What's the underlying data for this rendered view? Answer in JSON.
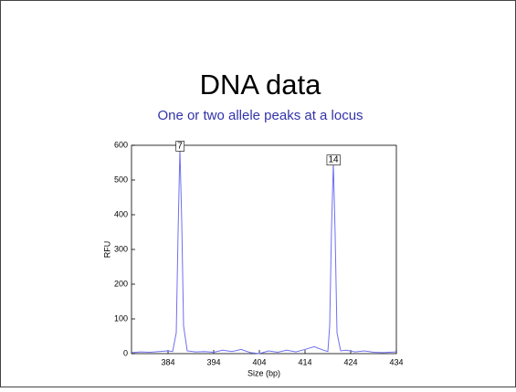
{
  "chart_data": {
    "type": "line",
    "title": "DNA data",
    "subtitle": "One or two allele peaks at a locus",
    "xlabel": "Size (bp)",
    "ylabel": "RFU",
    "x": [
      376,
      378,
      380,
      382,
      384,
      385,
      385.8,
      386.2,
      386.6,
      387.0,
      387.4,
      388.2,
      390,
      392,
      394,
      396,
      398,
      400,
      402,
      404,
      406,
      408,
      410,
      412,
      414,
      416,
      418,
      419,
      419.4,
      419.8,
      420.2,
      420.6,
      421.0,
      421.8,
      423,
      425,
      427,
      429,
      431,
      434
    ],
    "series": [
      {
        "color": "#6f6ff0",
        "values": [
          3,
          5,
          4,
          6,
          8,
          6,
          60,
          350,
          590,
          380,
          80,
          8,
          5,
          6,
          4,
          10,
          6,
          12,
          3,
          0,
          8,
          4,
          10,
          5,
          12,
          20,
          10,
          6,
          80,
          360,
          550,
          340,
          60,
          8,
          10,
          5,
          8,
          4,
          3,
          5
        ]
      }
    ],
    "annotations": [
      {
        "x": 386.6,
        "y": 590,
        "label": "7"
      },
      {
        "x": 420.2,
        "y": 550,
        "label": "14"
      }
    ],
    "xlim": [
      376,
      434
    ],
    "xticks": [
      384,
      394,
      404,
      414,
      424,
      434
    ],
    "ylim": [
      0,
      600
    ],
    "yticks": [
      0,
      100,
      200,
      300,
      400,
      500,
      600
    ]
  }
}
